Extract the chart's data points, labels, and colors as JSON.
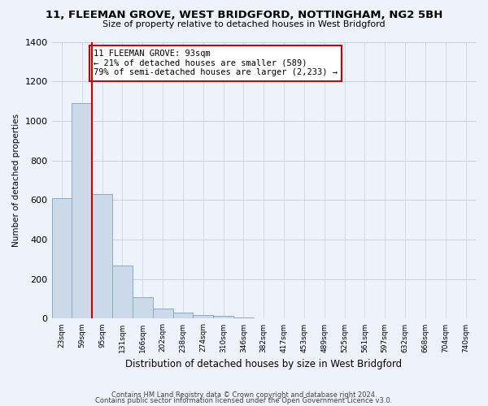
{
  "title": "11, FLEEMAN GROVE, WEST BRIDGFORD, NOTTINGHAM, NG2 5BH",
  "subtitle": "Size of property relative to detached houses in West Bridgford",
  "xlabel": "Distribution of detached houses by size in West Bridgford",
  "ylabel": "Number of detached properties",
  "bar_color": "#ccd9e8",
  "bar_edge_color": "#8aaac8",
  "marker_color": "#cc0000",
  "categories": [
    "23sqm",
    "59sqm",
    "95sqm",
    "131sqm",
    "166sqm",
    "202sqm",
    "238sqm",
    "274sqm",
    "310sqm",
    "346sqm",
    "382sqm",
    "417sqm",
    "453sqm",
    "489sqm",
    "525sqm",
    "561sqm",
    "597sqm",
    "632sqm",
    "668sqm",
    "704sqm",
    "740sqm"
  ],
  "values": [
    610,
    1090,
    630,
    270,
    110,
    50,
    30,
    20,
    15,
    5,
    0,
    0,
    0,
    0,
    0,
    0,
    0,
    0,
    0,
    0,
    0
  ],
  "marker_index": 2,
  "ylim": [
    0,
    1400
  ],
  "yticks": [
    0,
    200,
    400,
    600,
    800,
    1000,
    1200,
    1400
  ],
  "annotation_lines": [
    "11 FLEEMAN GROVE: 93sqm",
    "← 21% of detached houses are smaller (589)",
    "79% of semi-detached houses are larger (2,233) →"
  ],
  "footer_line1": "Contains HM Land Registry data © Crown copyright and database right 2024.",
  "footer_line2": "Contains public sector information licensed under the Open Government Licence v3.0.",
  "bg_color": "#eef2fa",
  "grid_color": "#c8d0e0"
}
